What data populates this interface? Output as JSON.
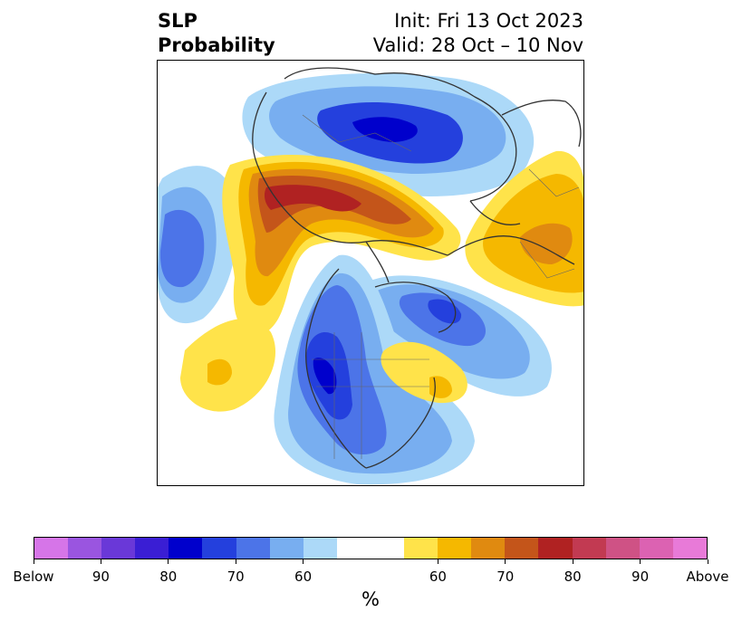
{
  "title": {
    "left_line1": "SLP",
    "left_line2": "Probability",
    "init": "Init: Fri 13 Oct 2023",
    "valid": "Valid: 28 Oct – 10 Nov"
  },
  "colorbar": {
    "units": "%",
    "colors": [
      "#d675e8",
      "#9a55e0",
      "#6a38d8",
      "#3a1ed4",
      "#0000cc",
      "#2440dd",
      "#4c74e8",
      "#78aef0",
      "#acd9f8",
      "#ffffff",
      "#ffe34a",
      "#f5b800",
      "#e08a10",
      "#c4551a",
      "#b02222",
      "#c23a52",
      "#cf5285",
      "#dc62b2",
      "#e87ad8"
    ],
    "tick_labels": [
      "Below",
      "90",
      "80",
      "70",
      "60",
      "60",
      "70",
      "80",
      "90",
      "Above"
    ]
  },
  "map": {
    "coast_color": "#333333",
    "blue_shades": [
      "#acd9f8",
      "#78aef0",
      "#4c74e8",
      "#2440dd",
      "#0000cc"
    ],
    "yellow_shades": [
      "#ffe34a",
      "#f5b800",
      "#e08a10",
      "#c4551a",
      "#b02222"
    ]
  }
}
